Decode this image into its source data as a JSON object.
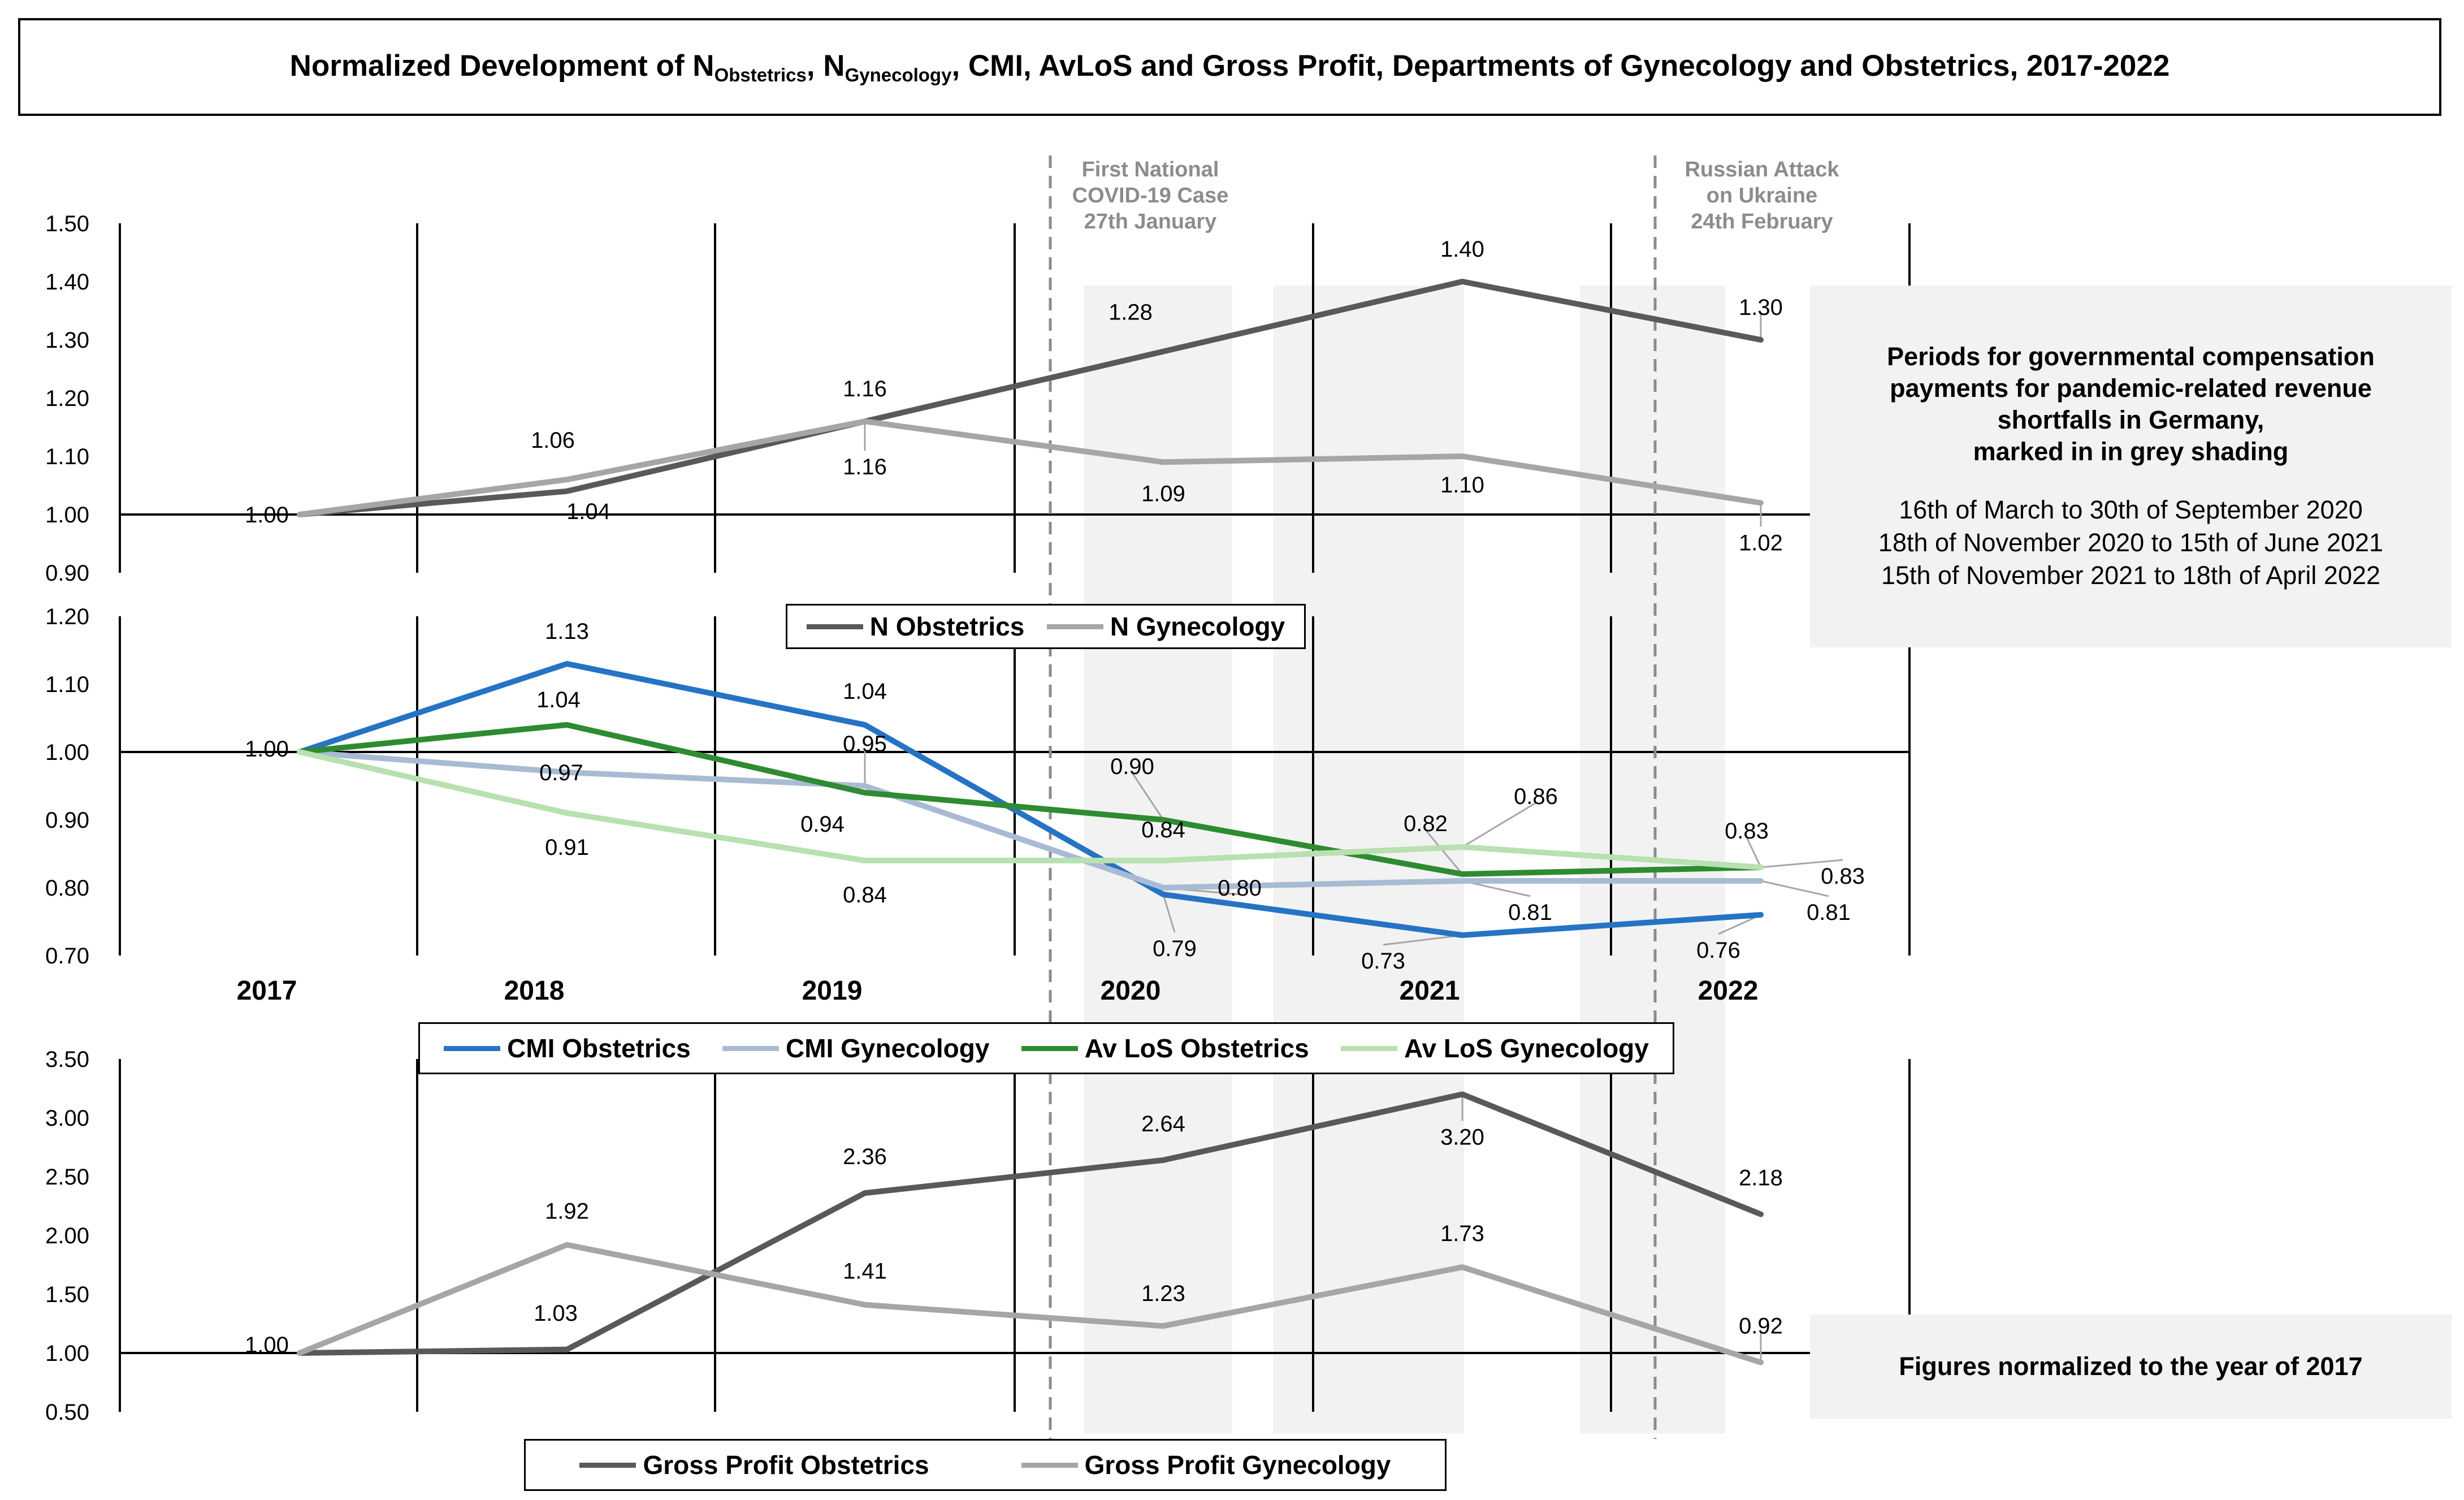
{
  "title": {
    "part1": "Normalized Development of N",
    "sub1": "Obstetrics",
    "part2": ", N",
    "sub2": "Gynecology",
    "part3": ", CMI, AvLoS and Gross Profit, Departments of Gynecology and Obstetrics, 2017-2022"
  },
  "annotations": {
    "covid": [
      "First National",
      "COVID-19 Case",
      "27th January"
    ],
    "russia": [
      "Russian Attack",
      "on Ukraine",
      "24th February"
    ]
  },
  "info_periods": {
    "heading": [
      "Periods for governmental compensation",
      "payments for pandemic-related revenue",
      "shortfalls in Germany,",
      "marked in in grey shading"
    ],
    "periods": [
      "16th of March to 30th of September 2020",
      "18th of November 2020 to 15th of June 2021",
      "15th of November 2021 to 18th of April 2022"
    ]
  },
  "info_norm": {
    "heading": "Figures normalized to the year of 2017"
  },
  "colors": {
    "n_obstetrics": "#595959",
    "n_gynecology": "#a6a6a6",
    "cmi_obstetrics": "#2673c4",
    "cmi_gynecology": "#a9bbd3",
    "avlos_obstetrics": "#2e8b31",
    "avlos_gynecology": "#b8e0b0",
    "gp_obstetrics": "#595959",
    "gp_gynecology": "#a6a6a6",
    "shading": "#f2f2f2",
    "dashed_line": "#8c8c8c"
  },
  "chart_data": [
    {
      "type": "line",
      "x": [
        "2017",
        "2018",
        "2019",
        "2020",
        "2021",
        "2022"
      ],
      "ylim": [
        0.9,
        1.5
      ],
      "yticks": [
        "0.90",
        "1.00",
        "1.10",
        "1.20",
        "1.30",
        "1.40",
        "1.50"
      ],
      "series": [
        {
          "name": "N Obstetrics",
          "values": [
            1.0,
            1.04,
            1.16,
            1.28,
            1.4,
            1.3
          ],
          "labels": [
            "1.00",
            "1.04",
            "1.16",
            "1.28",
            "1.40",
            "1.30"
          ]
        },
        {
          "name": "N Gynecology",
          "values": [
            1.0,
            1.06,
            1.16,
            1.09,
            1.1,
            1.02
          ],
          "labels": [
            "",
            "1.06",
            "1.16",
            "1.09",
            "1.10",
            "1.02"
          ]
        }
      ]
    },
    {
      "type": "line",
      "x": [
        "2017",
        "2018",
        "2019",
        "2020",
        "2021",
        "2022"
      ],
      "ylim": [
        0.7,
        1.2
      ],
      "yticks": [
        "0.70",
        "0.80",
        "0.90",
        "1.00",
        "1.10",
        "1.20"
      ],
      "series": [
        {
          "name": "CMI Obstetrics",
          "values": [
            1.0,
            1.13,
            1.04,
            0.79,
            0.73,
            0.76
          ],
          "labels": [
            "1.00",
            "1.13",
            "1.04",
            "0.79",
            "0.73",
            "0.76"
          ]
        },
        {
          "name": "CMI Gynecology",
          "values": [
            1.0,
            0.97,
            0.95,
            0.8,
            0.81,
            0.81
          ],
          "labels": [
            "",
            "0.97",
            "0.95",
            "0.80",
            "0.81",
            "0.81"
          ]
        },
        {
          "name": "Av LoS Obstetrics",
          "values": [
            1.0,
            1.04,
            0.94,
            0.9,
            0.82,
            0.83
          ],
          "labels": [
            "",
            "1.04",
            "0.94",
            "0.90",
            "0.82",
            "0.83"
          ]
        },
        {
          "name": "Av LoS Gynecology",
          "values": [
            1.0,
            0.91,
            0.84,
            0.84,
            0.86,
            0.83
          ],
          "labels": [
            "",
            "0.91",
            "0.84",
            "0.84",
            "0.86",
            "0.83"
          ]
        }
      ]
    },
    {
      "type": "line",
      "x": [
        "2017",
        "2018",
        "2019",
        "2020",
        "2021",
        "2022"
      ],
      "ylim": [
        0.5,
        3.5
      ],
      "yticks": [
        "0.50",
        "1.00",
        "1.50",
        "2.00",
        "2.50",
        "3.00",
        "3.50"
      ],
      "series": [
        {
          "name": "Gross Profit Obstetrics",
          "values": [
            1.0,
            1.03,
            2.36,
            2.64,
            3.2,
            2.18
          ],
          "labels": [
            "1.00",
            "1.03",
            "2.36",
            "2.64",
            "3.20",
            "2.18"
          ]
        },
        {
          "name": "Gross Profit Gynecology",
          "values": [
            1.0,
            1.92,
            1.41,
            1.23,
            1.73,
            0.92
          ],
          "labels": [
            "",
            "1.92",
            "1.41",
            "1.23",
            "1.73",
            "0.92"
          ]
        }
      ]
    }
  ]
}
